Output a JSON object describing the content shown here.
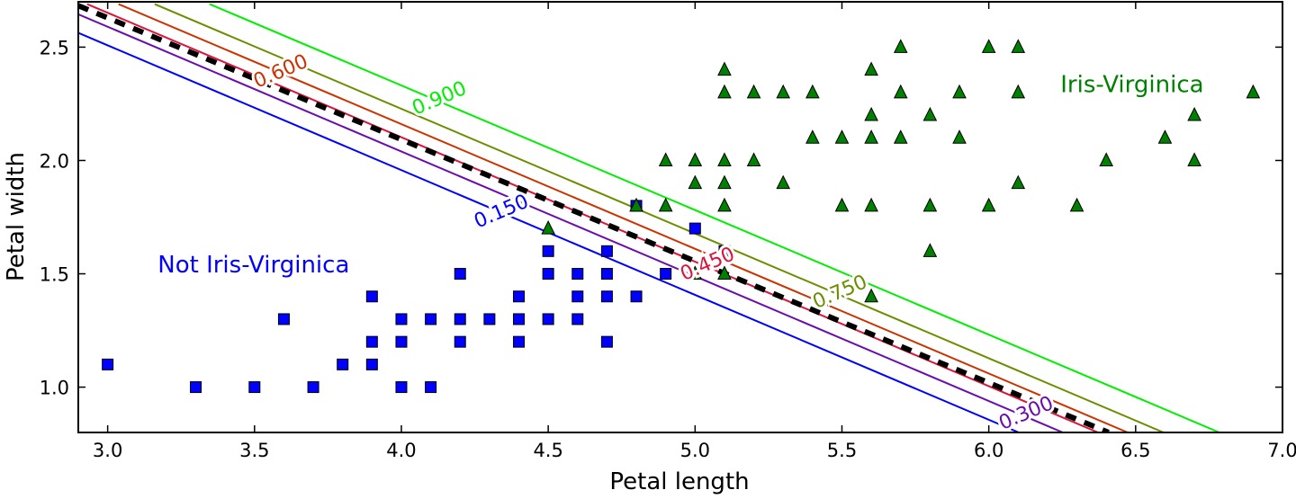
{
  "chart_data": {
    "type": "scatter",
    "title": "",
    "xlabel": "Petal length",
    "ylabel": "Petal width",
    "xlim": [
      2.9,
      7.0
    ],
    "ylim": [
      0.8,
      2.7
    ],
    "grid": false,
    "xticks": [
      "3.0",
      "3.5",
      "4.0",
      "4.5",
      "5.0",
      "5.5",
      "6.0",
      "6.5",
      "7.0"
    ],
    "yticks": [
      "1.0",
      "1.5",
      "2.0",
      "2.5"
    ],
    "series": [
      {
        "marker": "square",
        "color": "#0000ff",
        "points": [
          [
            3.0,
            1.1
          ],
          [
            3.3,
            1.0
          ],
          [
            3.5,
            1.0
          ],
          [
            3.6,
            1.3
          ],
          [
            3.7,
            1.0
          ],
          [
            3.8,
            1.1
          ],
          [
            3.9,
            1.4
          ],
          [
            3.9,
            1.2
          ],
          [
            3.9,
            1.1
          ],
          [
            4.0,
            1.3
          ],
          [
            4.0,
            1.2
          ],
          [
            4.0,
            1.0
          ],
          [
            4.1,
            1.3
          ],
          [
            4.1,
            1.0
          ],
          [
            4.2,
            1.5
          ],
          [
            4.2,
            1.3
          ],
          [
            4.2,
            1.2
          ],
          [
            4.3,
            1.3
          ],
          [
            4.4,
            1.4
          ],
          [
            4.4,
            1.3
          ],
          [
            4.4,
            1.2
          ],
          [
            4.5,
            1.6
          ],
          [
            4.5,
            1.5
          ],
          [
            4.5,
            1.3
          ],
          [
            4.6,
            1.5
          ],
          [
            4.6,
            1.4
          ],
          [
            4.6,
            1.3
          ],
          [
            4.7,
            1.6
          ],
          [
            4.7,
            1.5
          ],
          [
            4.7,
            1.4
          ],
          [
            4.7,
            1.2
          ],
          [
            4.8,
            1.8
          ],
          [
            4.8,
            1.4
          ],
          [
            4.9,
            1.5
          ],
          [
            5.0,
            1.7
          ],
          [
            5.1,
            1.6
          ]
        ]
      },
      {
        "marker": "triangle",
        "color": "#008000",
        "points": [
          [
            4.5,
            1.7
          ],
          [
            4.8,
            1.8
          ],
          [
            4.9,
            2.0
          ],
          [
            4.9,
            1.8
          ],
          [
            5.0,
            2.0
          ],
          [
            5.0,
            1.9
          ],
          [
            5.0,
            1.5
          ],
          [
            5.1,
            2.4
          ],
          [
            5.1,
            2.3
          ],
          [
            5.1,
            2.0
          ],
          [
            5.1,
            1.9
          ],
          [
            5.1,
            1.8
          ],
          [
            5.1,
            1.5
          ],
          [
            5.2,
            2.3
          ],
          [
            5.2,
            2.0
          ],
          [
            5.3,
            2.3
          ],
          [
            5.3,
            1.9
          ],
          [
            5.4,
            2.3
          ],
          [
            5.4,
            2.1
          ],
          [
            5.5,
            2.1
          ],
          [
            5.5,
            1.8
          ],
          [
            5.6,
            2.4
          ],
          [
            5.6,
            2.2
          ],
          [
            5.6,
            2.1
          ],
          [
            5.6,
            1.8
          ],
          [
            5.6,
            1.4
          ],
          [
            5.7,
            2.5
          ],
          [
            5.7,
            2.3
          ],
          [
            5.7,
            2.1
          ],
          [
            5.8,
            2.2
          ],
          [
            5.8,
            1.8
          ],
          [
            5.8,
            1.6
          ],
          [
            5.9,
            2.3
          ],
          [
            5.9,
            2.1
          ],
          [
            6.0,
            2.5
          ],
          [
            6.0,
            1.8
          ],
          [
            6.1,
            2.5
          ],
          [
            6.1,
            2.3
          ],
          [
            6.1,
            1.9
          ],
          [
            6.3,
            1.8
          ],
          [
            6.4,
            2.0
          ],
          [
            6.6,
            2.1
          ],
          [
            6.7,
            2.2
          ],
          [
            6.7,
            2.0
          ],
          [
            6.9,
            2.3
          ]
        ]
      }
    ],
    "contours": [
      {
        "label": "0.150",
        "color": "#0000ff",
        "line": [
          [
            2.9,
            2.563
          ],
          [
            6.102,
            0.8
          ]
        ],
        "label_at": [
          4.339,
          1.779
        ]
      },
      {
        "label": "0.300",
        "color": "#6a0dad",
        "line": [
          [
            2.9,
            2.645
          ],
          [
            6.252,
            0.8
          ]
        ],
        "label_at": [
          6.126,
          0.889
        ]
      },
      {
        "label": "0.450",
        "color": "#dc143c",
        "line": [
          [
            2.93,
            2.69
          ],
          [
            6.372,
            0.8
          ]
        ],
        "label_at": [
          5.041,
          1.547
        ]
      },
      {
        "label": "0.600",
        "color": "#cc3300",
        "line": [
          [
            3.037,
            2.69
          ],
          [
            6.473,
            0.8
          ]
        ],
        "label_at": [
          3.588,
          2.397
        ]
      },
      {
        "label": "0.750",
        "color": "#6b8e00",
        "line": [
          [
            3.16,
            2.69
          ],
          [
            6.595,
            0.8
          ]
        ],
        "label_at": [
          5.492,
          1.424
        ]
      },
      {
        "label": "0.900",
        "color": "#00ee00",
        "line": [
          [
            3.347,
            2.69
          ],
          [
            6.785,
            0.8
          ]
        ],
        "label_at": [
          4.128,
          2.278
        ]
      }
    ],
    "decision_boundary": {
      "color": "#000000",
      "style": "dashed",
      "line": [
        [
          2.9,
          2.683
        ],
        [
          6.408,
          0.8
        ]
      ]
    },
    "annotations": [
      {
        "text": "Not Iris-Virginica",
        "color": "#0000ff",
        "at": [
          3.497,
          1.542
        ]
      },
      {
        "text": "Iris-Virginica",
        "color": "#008000",
        "at": [
          6.488,
          2.338
        ]
      }
    ]
  }
}
